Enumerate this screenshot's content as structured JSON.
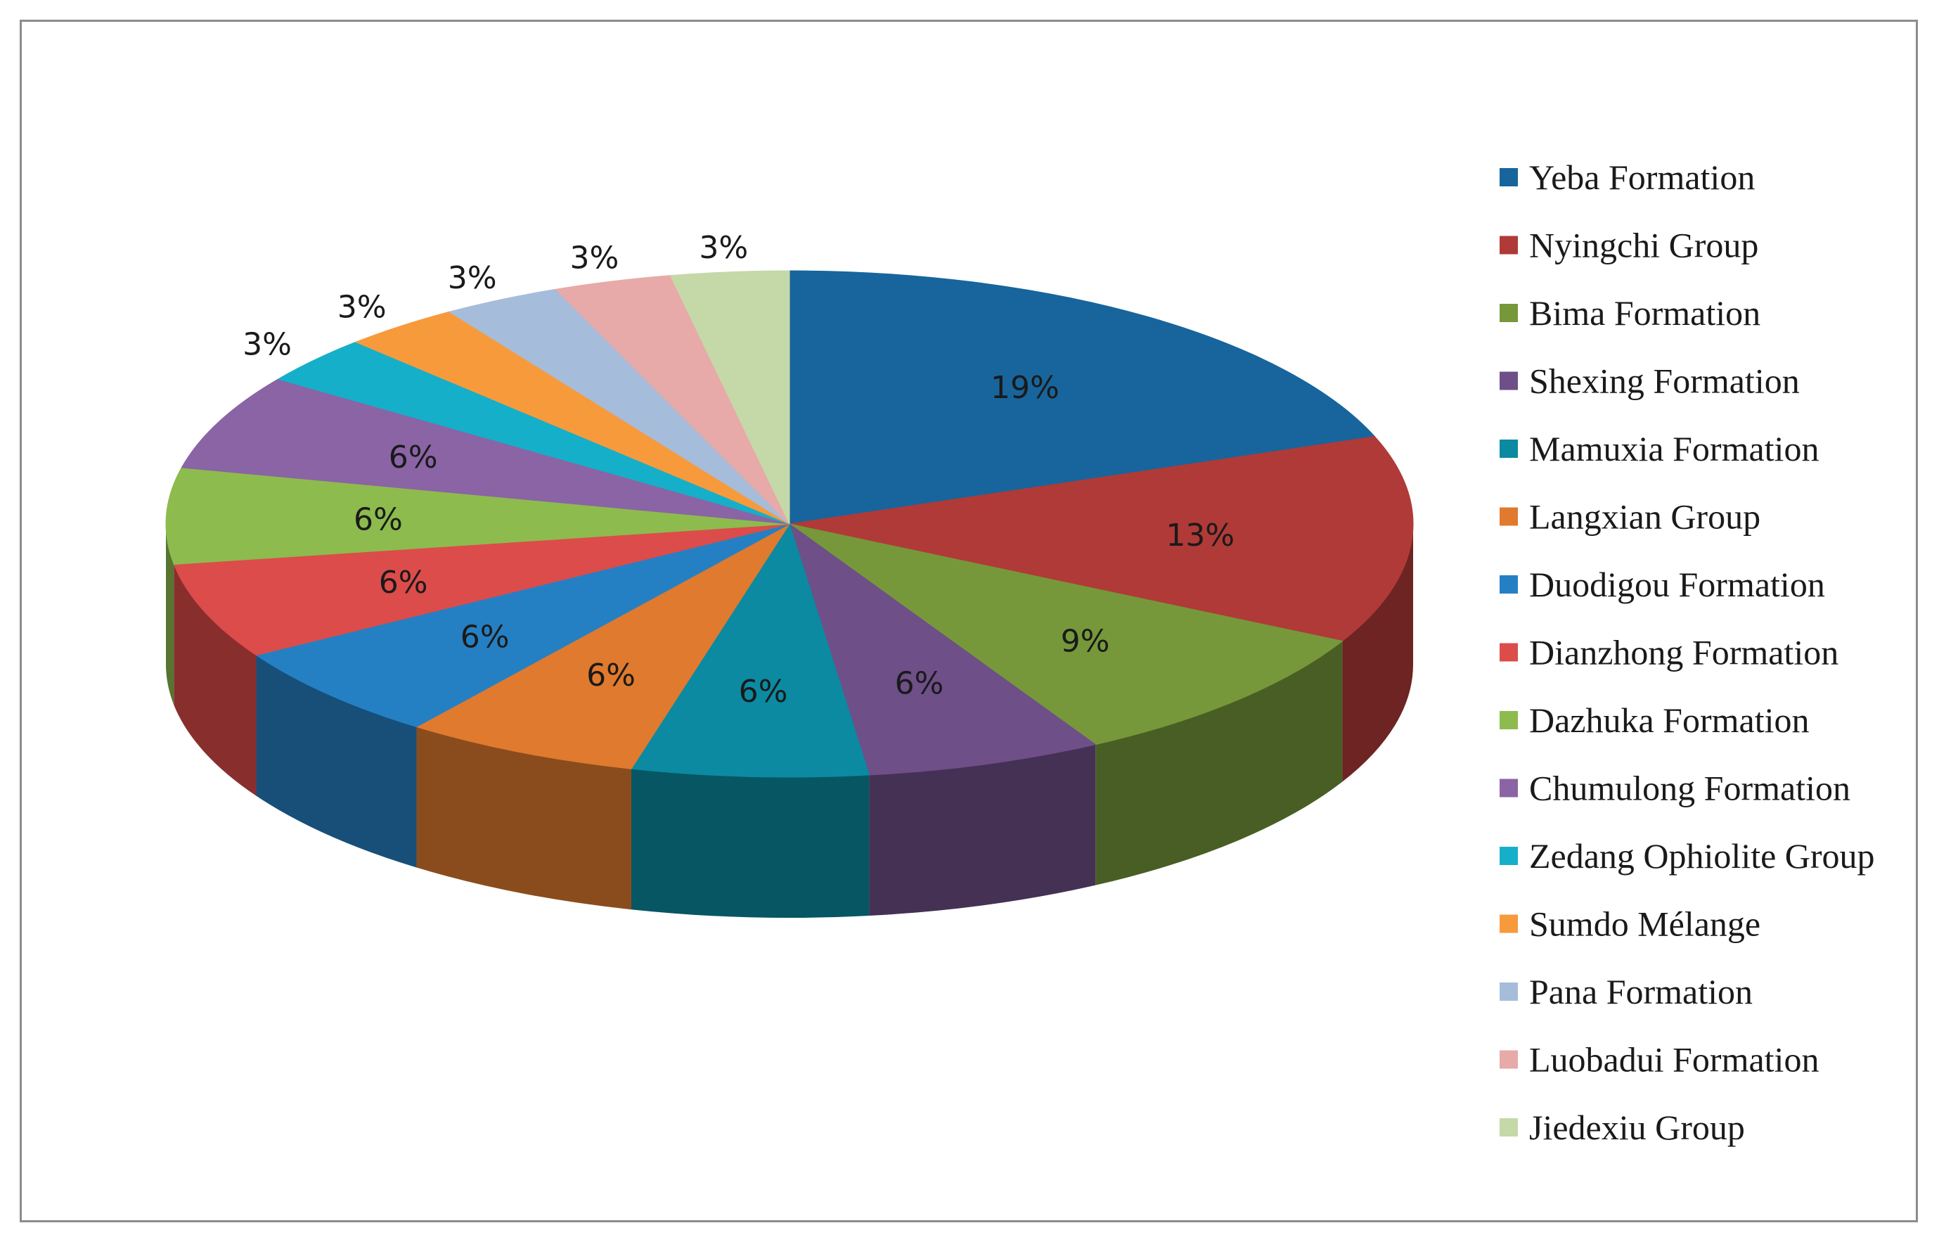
{
  "chart_data": {
    "type": "pie",
    "variant": "3d",
    "title": "",
    "legend": "right",
    "slices": [
      {
        "label": "Yeba Formation",
        "value": 19,
        "display": "19%",
        "color": "#17659C"
      },
      {
        "label": "Nyingchi Group",
        "value": 13,
        "display": "13%",
        "color": "#B03A37"
      },
      {
        "label": "Bima Formation",
        "value": 9,
        "display": "9%",
        "color": "#76983A"
      },
      {
        "label": "Shexing Formation",
        "value": 6,
        "display": "6%",
        "color": "#6E4F88"
      },
      {
        "label": "Mamuxia Formation",
        "value": 6,
        "display": "6%",
        "color": "#0B8AA2"
      },
      {
        "label": "Langxian Group",
        "value": 6,
        "display": "6%",
        "color": "#E07A2E"
      },
      {
        "label": "Duodigou Formation",
        "value": 6,
        "display": "6%",
        "color": "#2580C3"
      },
      {
        "label": "Dianzhong Formation",
        "value": 6,
        "display": "6%",
        "color": "#DC4C4A"
      },
      {
        "label": "Dazhuka Formation",
        "value": 6,
        "display": "6%",
        "color": "#8DBB4E"
      },
      {
        "label": "Chumulong Formation",
        "value": 6,
        "display": "6%",
        "color": "#8A64A4"
      },
      {
        "label": "Zedang Ophiolite Group",
        "value": 3,
        "display": "3%",
        "color": "#16AFC9"
      },
      {
        "label": "Sumdo Mélange",
        "value": 3,
        "display": "3%",
        "color": "#F79A3C"
      },
      {
        "label": "Pana Formation",
        "value": 3,
        "display": "3%",
        "color": "#A6BCDB"
      },
      {
        "label": "Luobadui Formation",
        "value": 3,
        "display": "3%",
        "color": "#E7AAA8"
      },
      {
        "label": "Jiedexiu Group",
        "value": 3,
        "display": "3%",
        "color": "#C5D8A8"
      }
    ]
  }
}
